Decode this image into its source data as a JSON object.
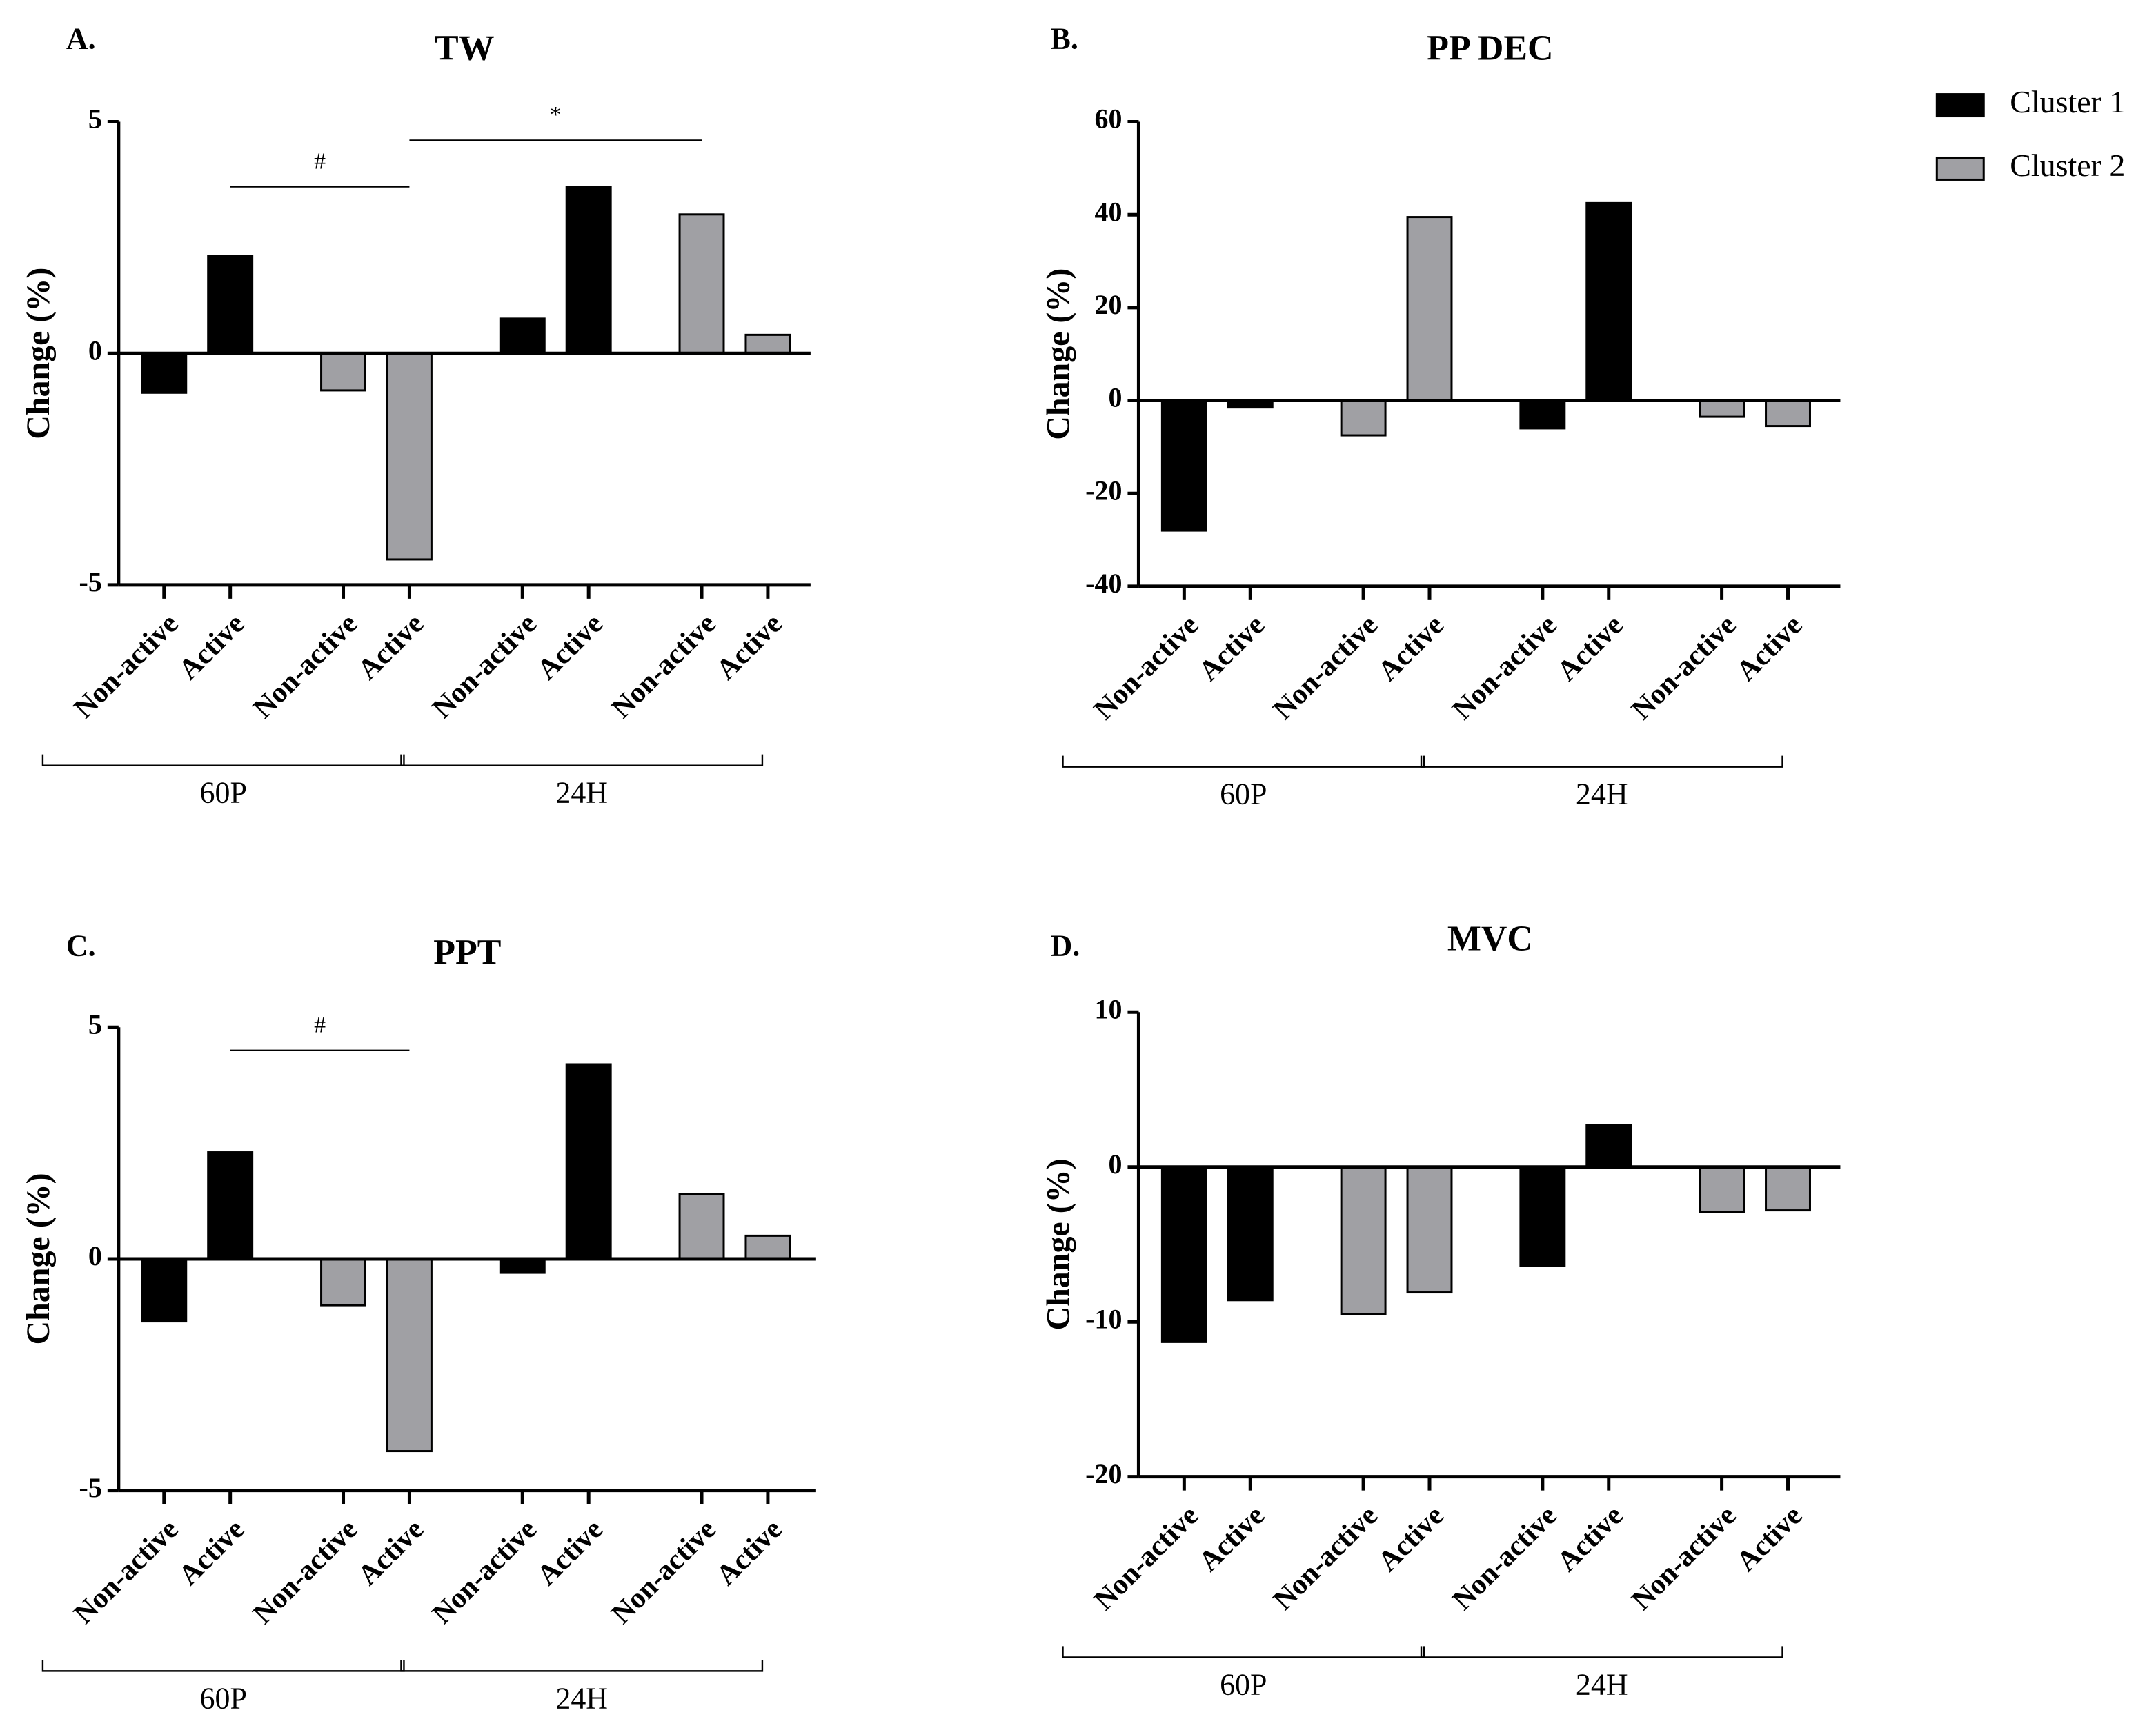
{
  "legend": [
    {
      "name": "Cluster 1",
      "color": "#000000"
    },
    {
      "name": "Cluster 2",
      "color": "#a0a0a4"
    }
  ],
  "chart_data": [
    {
      "type": "bar",
      "panel": "A.",
      "title": "TW",
      "y_label": "Change (%)",
      "categories": [
        "Non-active",
        "Active",
        "Non-active",
        "Active",
        "Non-active",
        "Active",
        "Non-active",
        "Active"
      ],
      "groups": [
        "60P",
        "24H"
      ],
      "series": [
        {
          "values": [
            -0.85,
            2.1,
            null,
            null,
            0.75,
            3.6,
            null,
            null
          ]
        },
        {
          "values": [
            null,
            null,
            -0.8,
            -4.45,
            null,
            null,
            3.0,
            0.4
          ]
        }
      ],
      "ylim": [
        -5,
        5
      ],
      "yticks": [
        -5,
        0,
        5
      ],
      "annotations": [
        {
          "label": "#",
          "from": 1,
          "to": 3,
          "y": 3.6
        },
        {
          "label": "*",
          "from": 3,
          "to": 6,
          "y": 4.6
        }
      ]
    },
    {
      "type": "bar",
      "panel": "B.",
      "title": "PP DEC",
      "y_label": "Change (%)",
      "categories": [
        "Non-active",
        "Active",
        "Non-active",
        "Active",
        "Non-active",
        "Active",
        "Non-active",
        "Active"
      ],
      "groups": [
        "60P",
        "24H"
      ],
      "series": [
        {
          "values": [
            -28,
            -1.5,
            null,
            null,
            -6,
            42.5,
            null,
            null
          ]
        },
        {
          "values": [
            null,
            null,
            -7.5,
            39.5,
            null,
            null,
            -3.5,
            -5.5
          ]
        }
      ],
      "ylim": [
        -40,
        60
      ],
      "yticks": [
        -40,
        -20,
        0,
        20,
        40,
        60
      ],
      "annotations": []
    },
    {
      "type": "bar",
      "panel": "C.",
      "title": "PPT",
      "y_label": "Change (%)",
      "categories": [
        "Non-active",
        "Active",
        "Non-active",
        "Active",
        "Non-active",
        "Active",
        "Non-active",
        "Active"
      ],
      "groups": [
        "60P",
        "24H"
      ],
      "series": [
        {
          "values": [
            -1.35,
            2.3,
            null,
            null,
            -0.3,
            4.2,
            null,
            null
          ]
        },
        {
          "values": [
            null,
            null,
            -1.0,
            -4.15,
            null,
            null,
            1.4,
            0.5
          ]
        }
      ],
      "ylim": [
        -5,
        5
      ],
      "yticks": [
        -5,
        0,
        5
      ],
      "annotations": [
        {
          "label": "#",
          "from": 1,
          "to": 3,
          "y": 4.5
        }
      ]
    },
    {
      "type": "bar",
      "panel": "D.",
      "title": "MVC",
      "y_label": "Change (%)",
      "categories": [
        "Non-active",
        "Active",
        "Non-active",
        "Active",
        "Non-active",
        "Active",
        "Non-active",
        "Active"
      ],
      "groups": [
        "60P",
        "24H"
      ],
      "series": [
        {
          "values": [
            -11.3,
            -8.6,
            null,
            null,
            -6.4,
            2.7,
            null,
            null
          ]
        },
        {
          "values": [
            null,
            null,
            -9.5,
            -8.1,
            null,
            null,
            -2.9,
            -2.8
          ]
        }
      ],
      "ylim": [
        -20,
        10
      ],
      "yticks": [
        -20,
        -10,
        0,
        10
      ],
      "annotations": []
    }
  ]
}
